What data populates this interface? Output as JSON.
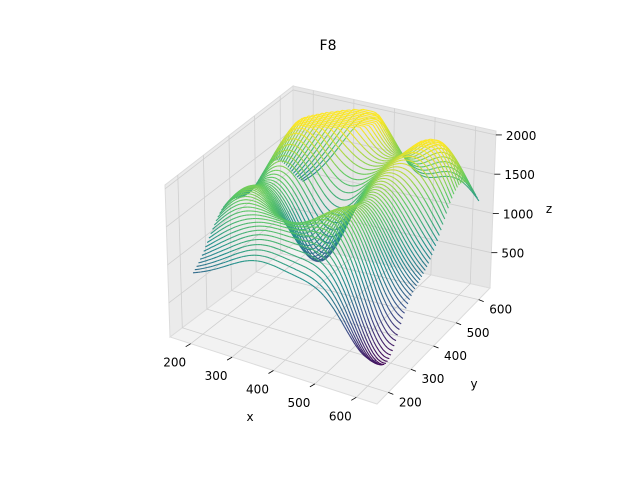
{
  "chart_data": {
    "type": "surface3d",
    "title": "F8",
    "xlabel": "x",
    "ylabel": "y",
    "zlabel": "z",
    "x_range": [
      150,
      650
    ],
    "y_range": [
      150,
      650
    ],
    "z_range": [
      50,
      2050
    ],
    "x_ticks": [
      "200",
      "300",
      "400",
      "500",
      "600"
    ],
    "y_ticks": [
      "200",
      "300",
      "400",
      "500",
      "600"
    ],
    "z_ticks": [
      "500",
      "1000",
      "1500",
      "2000"
    ],
    "colormap": "viridis",
    "surface_grid_lines": 60,
    "surface_peaks": [
      {
        "x": 250,
        "y": 520,
        "z": 1850
      },
      {
        "x": 360,
        "y": 600,
        "z": 2000
      },
      {
        "x": 470,
        "y": 440,
        "z": 1500
      },
      {
        "x": 560,
        "y": 560,
        "z": 1950
      },
      {
        "x": 230,
        "y": 340,
        "z": 1500
      },
      {
        "x": 340,
        "y": 260,
        "z": 1300
      },
      {
        "x": 480,
        "y": 300,
        "z": 1550
      }
    ],
    "surface_minima": [
      {
        "x": 380,
        "y": 400,
        "z": 150
      },
      {
        "x": 600,
        "y": 250,
        "z": 100
      }
    ],
    "grid": true
  }
}
